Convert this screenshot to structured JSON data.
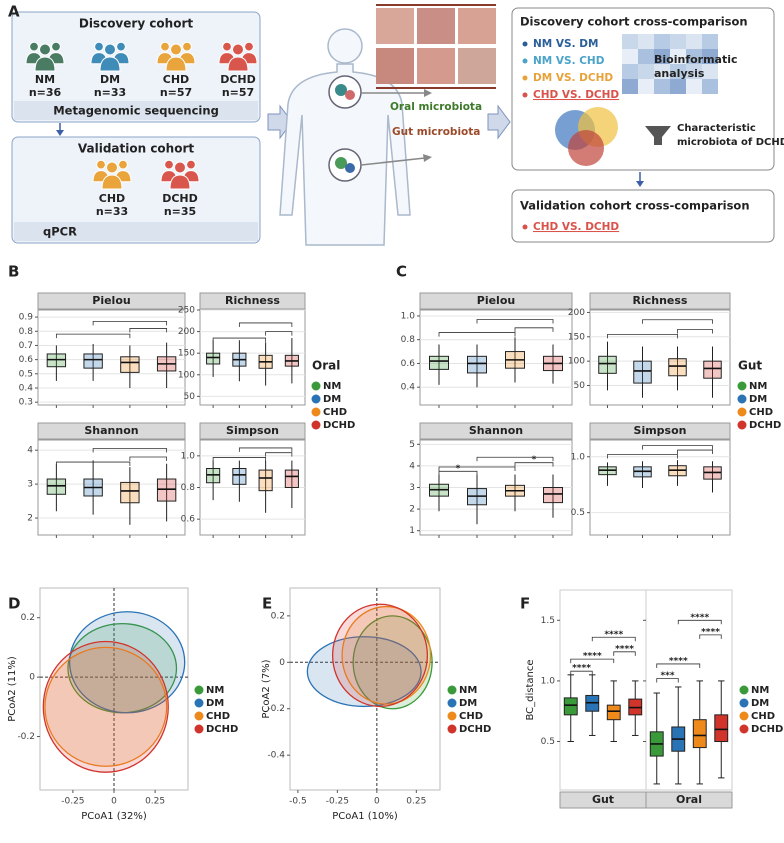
{
  "panel_labels": [
    "A",
    "B",
    "C",
    "D",
    "E",
    "F"
  ],
  "diagram": {
    "discovery": {
      "title": "Discovery cohort",
      "groups": [
        {
          "name": "NM",
          "n": "n=36"
        },
        {
          "name": "DM",
          "n": "n=33"
        },
        {
          "name": "CHD",
          "n": "n=57"
        },
        {
          "name": "DCHD",
          "n": "n=57"
        }
      ],
      "method": "Metagenomic sequencing"
    },
    "validation": {
      "title": "Validation cohort",
      "groups": [
        {
          "name": "CHD",
          "n": "n=33"
        },
        {
          "name": "DCHD",
          "n": "n=35"
        }
      ],
      "method": "qPCR"
    },
    "oral": "Oral microbiota",
    "gut": "Gut microbiota",
    "cross": {
      "title": "Discovery cohort cross-comparison",
      "comparisons": [
        "NM VS. DM",
        "NM VS. CHD",
        "DM VS. DCHD",
        "CHD VS. DCHD"
      ],
      "analysis": [
        "Bioinformatic",
        "analysis"
      ],
      "result": [
        "Characteristic",
        "microbiota of DCHD"
      ]
    },
    "validation_cross": {
      "title": "Validation cohort cross-comparison",
      "comparisons": [
        "CHD VS. DCHD"
      ]
    }
  },
  "chart_data": [
    {
      "type": "box",
      "panel": "B",
      "legend_title": "Oral",
      "grid": true,
      "series": [
        {
          "name": "NM",
          "color": "#3a9a3a"
        },
        {
          "name": "DM",
          "color": "#2a73b5"
        },
        {
          "name": "CHD",
          "color": "#ee8a1c"
        },
        {
          "name": "DCHD",
          "color": "#d1342b"
        }
      ],
      "facets": [
        {
          "title": "Pielou",
          "ylim": [
            0.28,
            0.95
          ],
          "yticks": [
            0.3,
            0.4,
            0.5,
            0.6,
            0.7,
            0.8,
            0.9
          ],
          "boxes": [
            [
              0.45,
              0.55,
              0.6,
              0.64,
              0.7
            ],
            [
              0.45,
              0.54,
              0.6,
              0.64,
              0.71
            ],
            [
              0.4,
              0.51,
              0.58,
              0.62,
              0.7
            ],
            [
              0.4,
              0.52,
              0.57,
              0.62,
              0.72
            ]
          ],
          "brackets": [
            {
              "pair": [
                0,
                2
              ],
              "y": 0.78
            },
            {
              "pair": [
                1,
                3
              ],
              "y": 0.87
            },
            {
              "pair": [
                2,
                3
              ],
              "y": 0.82
            }
          ]
        },
        {
          "title": "Richness",
          "ylim": [
            30,
            250
          ],
          "yticks": [
            50,
            100,
            150,
            200,
            250
          ],
          "boxes": [
            [
              95,
              125,
              140,
              150,
              180
            ],
            [
              85,
              120,
              135,
              150,
              180
            ],
            [
              75,
              115,
              130,
              145,
              175
            ],
            [
              80,
              120,
              132,
              145,
              185
            ]
          ],
          "brackets": [
            {
              "pair": [
                0,
                2
              ],
              "y": 185
            },
            {
              "pair": [
                1,
                3
              ],
              "y": 220
            },
            {
              "pair": [
                2,
                3
              ],
              "y": 200
            }
          ]
        },
        {
          "title": "Shannon",
          "ylim": [
            1.5,
            4.3
          ],
          "yticks": [
            2,
            3,
            4
          ],
          "boxes": [
            [
              2.2,
              2.7,
              2.95,
              3.15,
              3.6
            ],
            [
              2.1,
              2.65,
              2.9,
              3.15,
              3.7
            ],
            [
              1.8,
              2.45,
              2.8,
              3.05,
              3.5
            ],
            [
              1.9,
              2.5,
              2.85,
              3.15,
              3.6
            ]
          ],
          "brackets": [
            {
              "pair": [
                0,
                2
              ],
              "y": 3.65
            },
            {
              "pair": [
                1,
                3
              ],
              "y": 4.05
            },
            {
              "pair": [
                2,
                3
              ],
              "y": 3.8
            }
          ]
        },
        {
          "title": "Simpson",
          "ylim": [
            0.5,
            1.1
          ],
          "yticks": [
            0.6,
            0.8,
            {
              "value": 1,
              "label": "1.0"
            }
          ],
          "boxes": [
            [
              0.72,
              0.83,
              0.88,
              0.92,
              0.97
            ],
            [
              0.71,
              0.82,
              0.88,
              0.92,
              0.97
            ],
            [
              0.64,
              0.78,
              0.86,
              0.91,
              0.97
            ],
            [
              0.67,
              0.8,
              0.87,
              0.91,
              0.97
            ]
          ],
          "brackets": [
            {
              "pair": [
                0,
                2
              ],
              "y": 0.99
            },
            {
              "pair": [
                1,
                3
              ],
              "y": 1.05
            },
            {
              "pair": [
                2,
                3
              ],
              "y": 1.02
            }
          ]
        }
      ]
    },
    {
      "type": "box",
      "panel": "C",
      "legend_title": "Gut",
      "grid": true,
      "series": [
        {
          "name": "NM",
          "color": "#3a9a3a"
        },
        {
          "name": "DM",
          "color": "#2a73b5"
        },
        {
          "name": "CHD",
          "color": "#ee8a1c"
        },
        {
          "name": "DCHD",
          "color": "#d1342b"
        }
      ],
      "facets": [
        {
          "title": "Pielou",
          "ylim": [
            0.25,
            1.05
          ],
          "yticks": [
            0.4,
            0.6,
            0.8,
            {
              "value": 1,
              "label": "1.0"
            }
          ],
          "boxes": [
            [
              0.42,
              0.55,
              0.62,
              0.66,
              0.76
            ],
            [
              0.4,
              0.52,
              0.6,
              0.66,
              0.76
            ],
            [
              0.44,
              0.56,
              0.63,
              0.7,
              0.82
            ],
            [
              0.43,
              0.54,
              0.6,
              0.66,
              0.76
            ]
          ],
          "brackets": [
            {
              "pair": [
                0,
                2
              ],
              "y": 0.86
            },
            {
              "pair": [
                1,
                3
              ],
              "y": 0.97
            },
            {
              "pair": [
                2,
                3
              ],
              "y": 0.9
            }
          ]
        },
        {
          "title": "Richness",
          "ylim": [
            10,
            205
          ],
          "yticks": [
            50,
            100,
            150,
            200
          ],
          "boxes": [
            [
              40,
              75,
              95,
              110,
              140
            ],
            [
              25,
              55,
              80,
              100,
              130
            ],
            [
              40,
              70,
              90,
              105,
              130
            ],
            [
              25,
              65,
              85,
              100,
              130
            ]
          ],
          "brackets": [
            {
              "pair": [
                0,
                2
              ],
              "y": 155
            },
            {
              "pair": [
                1,
                3
              ],
              "y": 185
            },
            {
              "pair": [
                2,
                3
              ],
              "y": 165
            }
          ]
        },
        {
          "title": "Shannon",
          "ylim": [
            0.8,
            5.2
          ],
          "yticks": [
            1,
            2,
            3,
            4,
            5
          ],
          "boxes": [
            [
              1.9,
              2.6,
              2.9,
              3.15,
              3.6
            ],
            [
              1.3,
              2.2,
              2.6,
              2.95,
              3.6
            ],
            [
              1.9,
              2.6,
              2.85,
              3.1,
              3.6
            ],
            [
              1.6,
              2.3,
              2.7,
              3.0,
              3.6
            ]
          ],
          "brackets": [
            {
              "pair": [
                0,
                1
              ],
              "y": 3.75,
              "label": "*"
            },
            {
              "pair": [
                0,
                2
              ],
              "y": 3.95
            },
            {
              "pair": [
                1,
                3
              ],
              "y": 4.4
            },
            {
              "pair": [
                2,
                3
              ],
              "y": 4.15,
              "label": "*"
            }
          ]
        },
        {
          "title": "Simpson",
          "ylim": [
            0.3,
            1.15
          ],
          "yticks": [
            0.5,
            {
              "value": 1,
              "label": "1.0"
            }
          ],
          "boxes": [
            [
              0.74,
              0.84,
              0.88,
              0.91,
              0.95
            ],
            [
              0.72,
              0.82,
              0.87,
              0.91,
              0.96
            ],
            [
              0.74,
              0.83,
              0.88,
              0.92,
              0.97
            ],
            [
              0.68,
              0.8,
              0.86,
              0.91,
              0.96
            ]
          ],
          "brackets": [
            {
              "pair": [
                0,
                2
              ],
              "y": 1.02
            },
            {
              "pair": [
                1,
                3
              ],
              "y": 1.1
            },
            {
              "pair": [
                2,
                3
              ],
              "y": 1.06
            }
          ]
        }
      ]
    },
    {
      "type": "scatter",
      "panel": "D",
      "xlabel": "PCoA1 (32%)",
      "ylabel": "PCoA2 (11%)",
      "xlim": [
        -0.45,
        0.45
      ],
      "xticks": [
        -0.25,
        0,
        0.25
      ],
      "ylim": [
        -0.38,
        0.3
      ],
      "yticks": [
        -0.2,
        0,
        0.2
      ],
      "series": [
        {
          "name": "NM",
          "color": "#3a9a3a",
          "ellipse": {
            "cx": 0.05,
            "cy": 0.03,
            "rx": 0.33,
            "ry": 0.15
          }
        },
        {
          "name": "DM",
          "color": "#2a73b5",
          "ellipse": {
            "cx": 0.08,
            "cy": 0.05,
            "rx": 0.35,
            "ry": 0.17
          }
        },
        {
          "name": "CHD",
          "color": "#ee8a1c",
          "ellipse": {
            "cx": -0.05,
            "cy": -0.1,
            "rx": 0.37,
            "ry": 0.2
          }
        },
        {
          "name": "DCHD",
          "color": "#d1342b",
          "ellipse": {
            "cx": -0.05,
            "cy": -0.1,
            "rx": 0.38,
            "ry": 0.22
          }
        }
      ]
    },
    {
      "type": "scatter",
      "panel": "E",
      "xlabel": "PCoA1 (10%)",
      "ylabel": "PCoA2 (7%)",
      "xlim": [
        -0.55,
        0.4
      ],
      "xticks": [
        -0.5,
        -0.25,
        0,
        0.25
      ],
      "ylim": [
        -0.55,
        0.32
      ],
      "yticks": [
        -0.4,
        -0.2,
        0,
        0.2
      ],
      "series": [
        {
          "name": "NM",
          "color": "#3a9a3a",
          "ellipse": {
            "cx": 0.1,
            "cy": 0,
            "rx": 0.25,
            "ry": 0.2
          }
        },
        {
          "name": "DM",
          "color": "#2a73b5",
          "ellipse": {
            "cx": -0.08,
            "cy": -0.04,
            "rx": 0.36,
            "ry": 0.15
          }
        },
        {
          "name": "CHD",
          "color": "#ee8a1c",
          "ellipse": {
            "cx": 0.06,
            "cy": 0.03,
            "rx": 0.28,
            "ry": 0.21
          }
        },
        {
          "name": "DCHD",
          "color": "#d1342b",
          "ellipse": {
            "cx": 0.02,
            "cy": 0.03,
            "rx": 0.3,
            "ry": 0.22
          }
        }
      ]
    },
    {
      "type": "box",
      "panel": "F",
      "ylabel": "BC_distance",
      "grid": false,
      "filled": true,
      "ylim": [
        0.1,
        1.75
      ],
      "yticks": [
        0.5,
        {
          "value": 1,
          "label": "1.0"
        },
        1.5
      ],
      "series": [
        {
          "name": "NM",
          "color": "#3a9a3a"
        },
        {
          "name": "DM",
          "color": "#2a73b5"
        },
        {
          "name": "CHD",
          "color": "#ee8a1c"
        },
        {
          "name": "DCHD",
          "color": "#d1342b"
        }
      ],
      "facets": [
        {
          "title": "Gut",
          "boxes": [
            [
              0.5,
              0.72,
              0.8,
              0.86,
              1.05
            ],
            [
              0.55,
              0.75,
              0.82,
              0.88,
              1.05
            ],
            [
              0.5,
              0.68,
              0.75,
              0.8,
              1.0
            ],
            [
              0.55,
              0.72,
              0.78,
              0.85,
              1.0
            ]
          ],
          "brackets": [
            {
              "pair": [
                0,
                1
              ],
              "y": 1.08,
              "label": "****"
            },
            {
              "pair": [
                0,
                2
              ],
              "y": 1.18,
              "label": "****"
            },
            {
              "pair": [
                2,
                3
              ],
              "y": 1.24,
              "label": "****"
            },
            {
              "pair": [
                1,
                3
              ],
              "y": 1.36,
              "label": "****"
            }
          ]
        },
        {
          "title": "Oral",
          "boxes": [
            [
              0.15,
              0.38,
              0.48,
              0.58,
              0.9
            ],
            [
              0.15,
              0.42,
              0.52,
              0.62,
              0.95
            ],
            [
              0.15,
              0.45,
              0.55,
              0.68,
              1.0
            ],
            [
              0.2,
              0.5,
              0.6,
              0.72,
              1.0
            ]
          ],
          "brackets": [
            {
              "pair": [
                0,
                1
              ],
              "y": 1.02,
              "label": "***"
            },
            {
              "pair": [
                0,
                2
              ],
              "y": 1.14,
              "label": "****"
            },
            {
              "pair": [
                2,
                3
              ],
              "y": 1.38,
              "label": "****"
            },
            {
              "pair": [
                1,
                3
              ],
              "y": 1.5,
              "label": "****"
            }
          ]
        }
      ]
    }
  ]
}
